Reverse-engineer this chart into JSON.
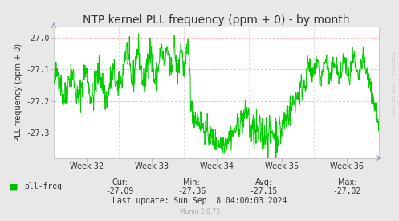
{
  "title": "NTP kernel PLL frequency (ppm + 0) - by month",
  "ylabel": "PLL frequency (ppm + 0)",
  "xlabel_ticks": [
    "Week 32",
    "Week 33",
    "Week 34",
    "Week 35",
    "Week 36"
  ],
  "yticks": [
    -27.0,
    -27.1,
    -27.2,
    -27.3
  ],
  "ylim": [
    -27.38,
    -26.965
  ],
  "xlim": [
    0,
    100
  ],
  "line_color": "#00cc00",
  "bg_color": "#e8e8e8",
  "plot_bg_color": "#ffffff",
  "grid_color_h": "#ff9999",
  "grid_color_v": "#cccccc",
  "legend_label": "pll-freq",
  "legend_color": "#00bb00",
  "cur": "-27.09",
  "min": "-27.36",
  "avg": "-27.15",
  "max": "-27.02",
  "last_update": "Last update: Sun Sep  8 04:00:03 2024",
  "munin_version": "Munin 2.0.73",
  "rrdtool_label": "RRDTOOL / TOBI OETIKER",
  "title_fontsize": 10,
  "axis_fontsize": 7,
  "legend_fontsize": 7,
  "info_fontsize": 7,
  "seed": 42
}
